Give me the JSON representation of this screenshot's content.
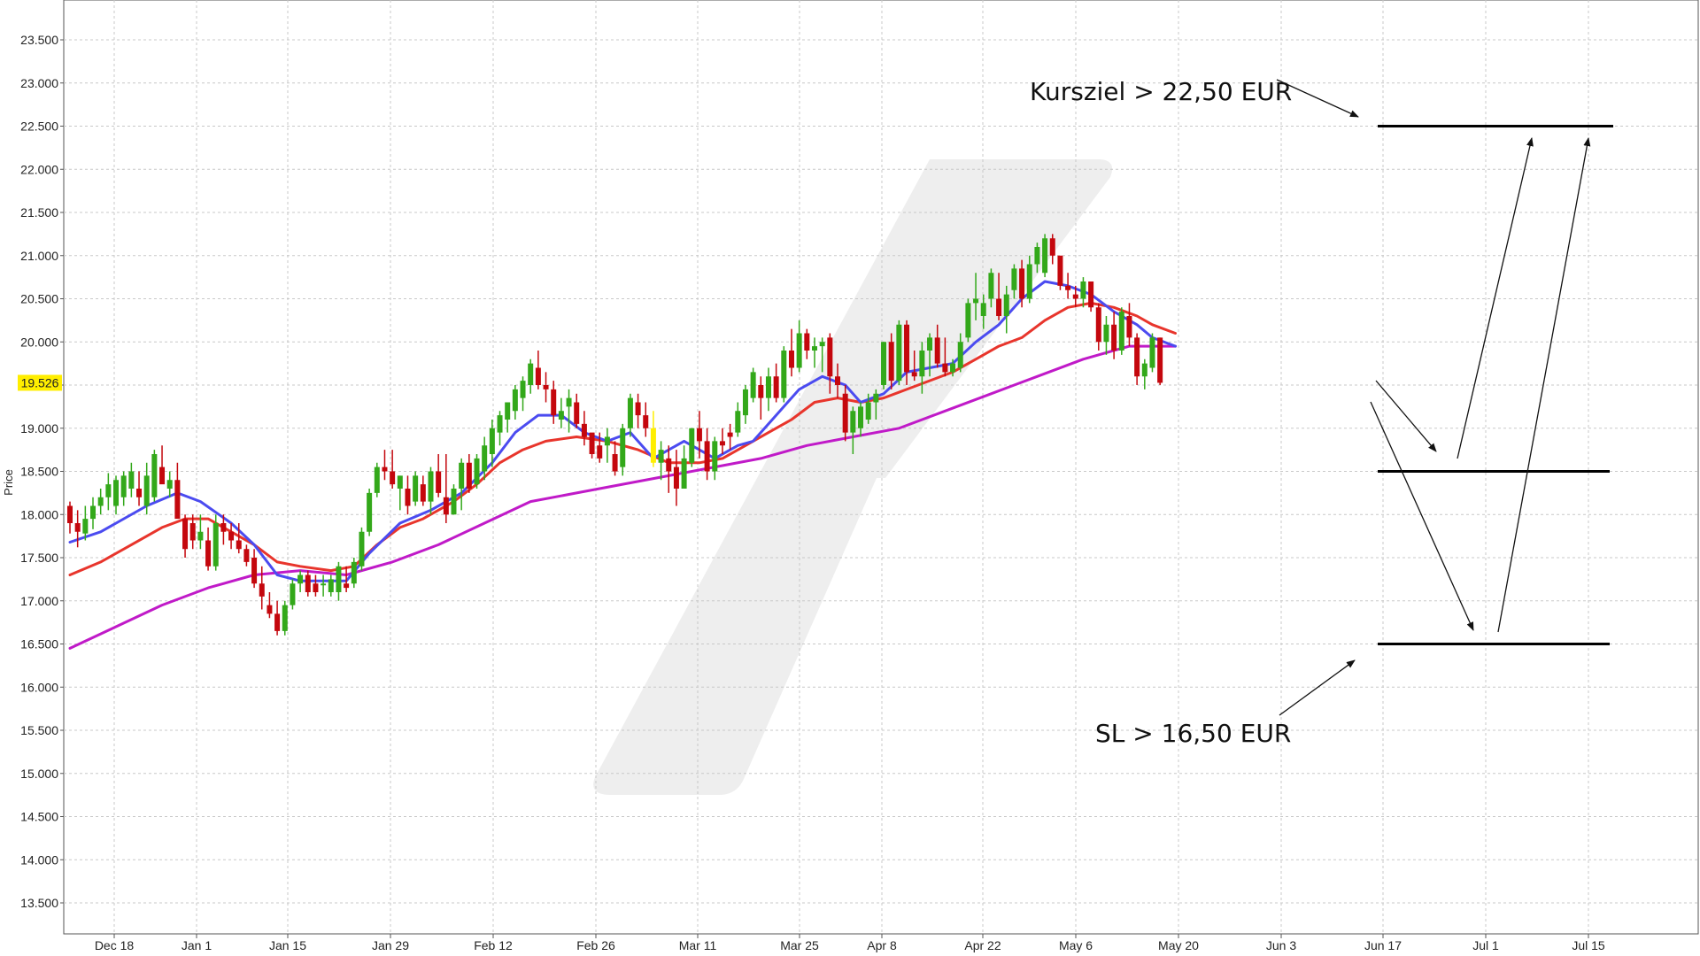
{
  "chart_data": {
    "type": "ohlc",
    "ylabel": "Price",
    "ylim": [
      13000,
      23900
    ],
    "y_ticks": [
      "13.500",
      "14.000",
      "14.500",
      "15.000",
      "15.500",
      "16.000",
      "16.500",
      "17.000",
      "17.500",
      "18.000",
      "18.500",
      "19.000",
      "19.500",
      "20.000",
      "20.500",
      "21.000",
      "21.500",
      "22.000",
      "22.500",
      "23.000",
      "23.500"
    ],
    "y_tick_values": [
      13500,
      14000,
      14500,
      15000,
      15500,
      16000,
      16500,
      17000,
      17500,
      18000,
      18500,
      19000,
      19500,
      20000,
      20500,
      21000,
      21500,
      22000,
      22500,
      23000,
      23500
    ],
    "x_ticks": [
      "Dec 18",
      "Jan 1",
      "Jan 15",
      "Jan 29",
      "Feb 12",
      "Feb 26",
      "Mar 11",
      "Mar 25",
      "Apr 8",
      "Apr 22",
      "May 6",
      "May 20",
      "Jun 3",
      "Jun 17",
      "Jul 1",
      "Jul 15"
    ],
    "last_price": "19.526",
    "colors": {
      "up": "#33a81a",
      "down": "#c4070d",
      "highlight": "#ffee00",
      "ma_fast": "#4b4bf0",
      "ma_mid": "#e8352c",
      "ma_slow": "#c01ac8",
      "grid": "#c8c8c8"
    },
    "bars": [
      [
        18100,
        18150,
        17780,
        17900
      ],
      [
        17900,
        18050,
        17620,
        17800
      ],
      [
        17780,
        18100,
        17700,
        17950
      ],
      [
        17950,
        18200,
        17830,
        18100
      ],
      [
        18100,
        18300,
        18000,
        18200
      ],
      [
        18200,
        18480,
        18050,
        18350
      ],
      [
        18100,
        18450,
        18000,
        18400
      ],
      [
        18200,
        18500,
        18100,
        18450
      ],
      [
        18300,
        18600,
        18200,
        18500
      ],
      [
        18300,
        18500,
        18100,
        18200
      ],
      [
        18100,
        18600,
        18000,
        18450
      ],
      [
        18200,
        18750,
        18150,
        18700
      ],
      [
        18550,
        18800,
        18400,
        18350
      ],
      [
        18300,
        18500,
        18200,
        18400
      ],
      [
        18400,
        18600,
        18100,
        17950
      ],
      [
        17950,
        18000,
        17500,
        17600
      ],
      [
        17900,
        18000,
        17600,
        17700
      ],
      [
        17700,
        18000,
        17600,
        17800
      ],
      [
        17700,
        17850,
        17350,
        17400
      ],
      [
        17400,
        18000,
        17350,
        17900
      ],
      [
        17900,
        18000,
        17650,
        17800
      ],
      [
        17800,
        17900,
        17600,
        17700
      ],
      [
        17700,
        17900,
        17550,
        17600
      ],
      [
        17600,
        17650,
        17400,
        17450
      ],
      [
        17500,
        17600,
        17150,
        17200
      ],
      [
        17200,
        17400,
        16900,
        17050
      ],
      [
        16950,
        17100,
        16800,
        16850
      ],
      [
        16850,
        17000,
        16600,
        16650
      ],
      [
        16650,
        17000,
        16600,
        16950
      ],
      [
        16950,
        17250,
        16900,
        17200
      ],
      [
        17200,
        17350,
        17100,
        17300
      ],
      [
        17300,
        17350,
        17050,
        17100
      ],
      [
        17200,
        17300,
        17050,
        17100
      ],
      [
        17200,
        17300,
        17050,
        17200
      ],
      [
        17100,
        17300,
        17050,
        17250
      ],
      [
        17100,
        17450,
        17000,
        17400
      ],
      [
        17200,
        17400,
        17100,
        17150
      ],
      [
        17200,
        17500,
        17150,
        17450
      ],
      [
        17400,
        17850,
        17350,
        17800
      ],
      [
        17800,
        18300,
        17750,
        18250
      ],
      [
        18250,
        18600,
        18200,
        18550
      ],
      [
        18550,
        18750,
        18400,
        18500
      ],
      [
        18500,
        18750,
        18300,
        18350
      ],
      [
        18300,
        18450,
        18050,
        18450
      ],
      [
        18300,
        18450,
        18000,
        18100
      ],
      [
        18150,
        18500,
        18100,
        18450
      ],
      [
        18350,
        18450,
        18100,
        18150
      ],
      [
        18150,
        18550,
        18000,
        18500
      ],
      [
        18500,
        18700,
        18200,
        18250
      ],
      [
        18200,
        18700,
        17900,
        18000
      ],
      [
        18000,
        18350,
        18000,
        18300
      ],
      [
        18300,
        18650,
        18050,
        18600
      ],
      [
        18600,
        18700,
        18250,
        18300
      ],
      [
        18350,
        18700,
        18300,
        18650
      ],
      [
        18500,
        18900,
        18400,
        18800
      ],
      [
        18700,
        19100,
        18550,
        19000
      ],
      [
        18950,
        19200,
        18800,
        19150
      ],
      [
        19100,
        19300,
        18950,
        19300
      ],
      [
        19200,
        19500,
        19100,
        19450
      ],
      [
        19350,
        19600,
        19200,
        19550
      ],
      [
        19500,
        19800,
        19400,
        19750
      ],
      [
        19700,
        19900,
        19450,
        19500
      ],
      [
        19500,
        19650,
        19300,
        19450
      ],
      [
        19450,
        19550,
        19050,
        19150
      ],
      [
        19100,
        19350,
        19000,
        19200
      ],
      [
        19250,
        19450,
        18950,
        19350
      ],
      [
        19300,
        19400,
        19000,
        19050
      ],
      [
        19050,
        19200,
        18800,
        18900
      ],
      [
        18950,
        18850,
        18650,
        18700
      ],
      [
        18800,
        18950,
        18600,
        18650
      ],
      [
        18800,
        19000,
        18600,
        18900
      ],
      [
        18700,
        18850,
        18450,
        18500
      ],
      [
        18550,
        19050,
        18450,
        19000
      ],
      [
        19000,
        19400,
        18900,
        19350
      ],
      [
        19300,
        19400,
        19000,
        19150
      ],
      [
        19150,
        19300,
        18900,
        19000
      ],
      [
        19000,
        19200,
        18550,
        18600
      ],
      [
        18600,
        18850,
        18400,
        18750
      ],
      [
        18650,
        18800,
        18250,
        18500
      ],
      [
        18550,
        18750,
        18100,
        18300
      ],
      [
        18300,
        18800,
        18300,
        18650
      ],
      [
        18600,
        19000,
        18550,
        19000
      ],
      [
        19000,
        19200,
        18650,
        18850
      ],
      [
        18850,
        19000,
        18400,
        18500
      ],
      [
        18500,
        18900,
        18400,
        18850
      ],
      [
        18850,
        19000,
        18700,
        18800
      ],
      [
        18950,
        19050,
        18750,
        18900
      ],
      [
        18950,
        19300,
        18900,
        19200
      ],
      [
        19150,
        19500,
        19050,
        19450
      ],
      [
        19350,
        19700,
        19300,
        19650
      ],
      [
        19500,
        19600,
        19100,
        19350
      ],
      [
        19350,
        19700,
        19200,
        19600
      ],
      [
        19600,
        19750,
        19300,
        19350
      ],
      [
        19350,
        19950,
        19300,
        19900
      ],
      [
        19900,
        20150,
        19600,
        19700
      ],
      [
        19700,
        20250,
        19650,
        20100
      ],
      [
        20100,
        20150,
        19800,
        19900
      ],
      [
        19900,
        20050,
        19700,
        19950
      ],
      [
        19950,
        20050,
        19650,
        20000
      ],
      [
        20050,
        20100,
        19400,
        19600
      ],
      [
        19600,
        19750,
        19350,
        19500
      ],
      [
        19400,
        19500,
        18850,
        18950
      ],
      [
        18950,
        19250,
        18700,
        19200
      ],
      [
        19000,
        19300,
        18900,
        19250
      ],
      [
        19100,
        19400,
        19050,
        19300
      ],
      [
        19300,
        19450,
        19100,
        19400
      ],
      [
        19500,
        20000,
        19450,
        20000
      ],
      [
        20000,
        20100,
        19450,
        19550
      ],
      [
        19550,
        20250,
        19500,
        20200
      ],
      [
        20200,
        20250,
        19500,
        19650
      ],
      [
        19650,
        19900,
        19550,
        19600
      ],
      [
        19600,
        20000,
        19400,
        19900
      ],
      [
        19900,
        20100,
        19600,
        20050
      ],
      [
        20050,
        20200,
        19700,
        19750
      ],
      [
        19750,
        20050,
        19600,
        19650
      ],
      [
        19650,
        19800,
        19600,
        19750
      ],
      [
        19700,
        20100,
        19650,
        20000
      ],
      [
        20050,
        20500,
        20000,
        20450
      ],
      [
        20450,
        20800,
        20250,
        20500
      ],
      [
        20300,
        20550,
        20150,
        20450
      ],
      [
        20500,
        20850,
        20400,
        20800
      ],
      [
        20500,
        20800,
        20250,
        20300
      ],
      [
        20300,
        20650,
        20100,
        20550
      ],
      [
        20600,
        20900,
        20500,
        20850
      ],
      [
        20850,
        20950,
        20400,
        20500
      ],
      [
        20500,
        21000,
        20450,
        20900
      ],
      [
        20900,
        21150,
        20800,
        21100
      ],
      [
        20800,
        21250,
        20750,
        21200
      ],
      [
        21200,
        21250,
        20900,
        21000
      ],
      [
        21000,
        20900,
        20600,
        20650
      ],
      [
        20650,
        20800,
        20500,
        20600
      ],
      [
        20550,
        20650,
        20400,
        20500
      ],
      [
        20500,
        20750,
        20400,
        20700
      ],
      [
        20700,
        20700,
        20350,
        20400
      ],
      [
        20400,
        20450,
        19900,
        20000
      ],
      [
        20000,
        20300,
        19850,
        20200
      ],
      [
        20200,
        20350,
        19800,
        19900
      ],
      [
        19900,
        20400,
        19850,
        20350
      ],
      [
        20300,
        20450,
        19950,
        20050
      ],
      [
        20050,
        20100,
        19500,
        19600
      ],
      [
        19600,
        19800,
        19450,
        19750
      ],
      [
        19700,
        20100,
        19650,
        20050
      ],
      [
        20050,
        20050,
        19500,
        19526
      ]
    ],
    "highlight_bar": 76,
    "ma_fast": [
      [
        0,
        17680
      ],
      [
        4,
        17800
      ],
      [
        10,
        18100
      ],
      [
        14,
        18250
      ],
      [
        17,
        18150
      ],
      [
        21,
        17900
      ],
      [
        24,
        17650
      ],
      [
        27,
        17300
      ],
      [
        30,
        17230
      ],
      [
        36,
        17230
      ],
      [
        39,
        17550
      ],
      [
        43,
        17900
      ],
      [
        47,
        18050
      ],
      [
        51,
        18250
      ],
      [
        55,
        18600
      ],
      [
        58,
        18950
      ],
      [
        61,
        19150
      ],
      [
        64,
        19150
      ],
      [
        67,
        18950
      ],
      [
        70,
        18850
      ],
      [
        73,
        18950
      ],
      [
        76,
        18650
      ],
      [
        80,
        18850
      ],
      [
        84,
        18650
      ],
      [
        87,
        18800
      ],
      [
        89,
        18850
      ],
      [
        92,
        19150
      ],
      [
        95,
        19450
      ],
      [
        98,
        19600
      ],
      [
        101,
        19500
      ],
      [
        103,
        19300
      ],
      [
        106,
        19400
      ],
      [
        109,
        19650
      ],
      [
        112,
        19700
      ],
      [
        115,
        19750
      ],
      [
        118,
        20000
      ],
      [
        121,
        20200
      ],
      [
        124,
        20500
      ],
      [
        127,
        20700
      ],
      [
        130,
        20650
      ],
      [
        133,
        20550
      ],
      [
        136,
        20350
      ],
      [
        139,
        20200
      ],
      [
        141,
        20050
      ],
      [
        144,
        19950
      ]
    ],
    "ma_mid": [
      [
        0,
        17300
      ],
      [
        4,
        17450
      ],
      [
        8,
        17650
      ],
      [
        12,
        17850
      ],
      [
        15,
        17950
      ],
      [
        18,
        17950
      ],
      [
        21,
        17800
      ],
      [
        24,
        17650
      ],
      [
        27,
        17450
      ],
      [
        30,
        17400
      ],
      [
        34,
        17350
      ],
      [
        37,
        17400
      ],
      [
        40,
        17650
      ],
      [
        43,
        17850
      ],
      [
        46,
        17950
      ],
      [
        50,
        18150
      ],
      [
        53,
        18350
      ],
      [
        56,
        18600
      ],
      [
        59,
        18750
      ],
      [
        62,
        18850
      ],
      [
        66,
        18900
      ],
      [
        70,
        18850
      ],
      [
        74,
        18750
      ],
      [
        78,
        18600
      ],
      [
        82,
        18600
      ],
      [
        85,
        18650
      ],
      [
        88,
        18800
      ],
      [
        91,
        18950
      ],
      [
        94,
        19100
      ],
      [
        97,
        19300
      ],
      [
        100,
        19350
      ],
      [
        103,
        19300
      ],
      [
        106,
        19350
      ],
      [
        109,
        19450
      ],
      [
        112,
        19550
      ],
      [
        115,
        19650
      ],
      [
        118,
        19800
      ],
      [
        121,
        19950
      ],
      [
        124,
        20050
      ],
      [
        127,
        20250
      ],
      [
        130,
        20400
      ],
      [
        133,
        20450
      ],
      [
        136,
        20400
      ],
      [
        139,
        20300
      ],
      [
        141,
        20200
      ],
      [
        144,
        20100
      ]
    ],
    "ma_slow": [
      [
        0,
        16450
      ],
      [
        6,
        16700
      ],
      [
        12,
        16950
      ],
      [
        18,
        17150
      ],
      [
        24,
        17300
      ],
      [
        30,
        17350
      ],
      [
        36,
        17300
      ],
      [
        42,
        17450
      ],
      [
        48,
        17650
      ],
      [
        54,
        17900
      ],
      [
        60,
        18150
      ],
      [
        66,
        18250
      ],
      [
        72,
        18350
      ],
      [
        78,
        18450
      ],
      [
        84,
        18550
      ],
      [
        90,
        18650
      ],
      [
        96,
        18800
      ],
      [
        102,
        18900
      ],
      [
        108,
        19000
      ],
      [
        114,
        19200
      ],
      [
        120,
        19400
      ],
      [
        126,
        19600
      ],
      [
        132,
        19800
      ],
      [
        138,
        19950
      ],
      [
        144,
        19950
      ]
    ],
    "targets": {
      "upper_label": "Kursziel > 22,50 EUR",
      "lower_label": "SL > 16,50 EUR",
      "levels": [
        22500,
        18500,
        16500
      ]
    }
  }
}
